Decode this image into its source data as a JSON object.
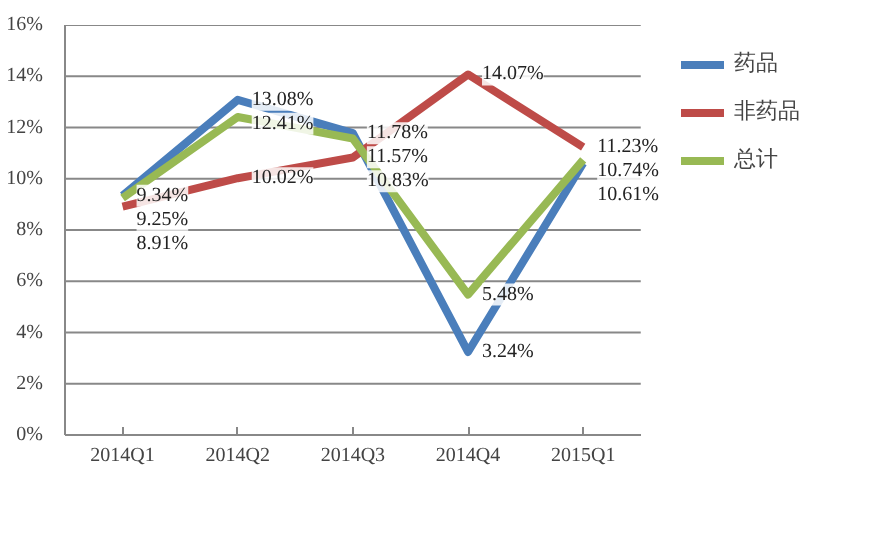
{
  "chart_data": {
    "type": "line",
    "categories": [
      "2014Q1",
      "2014Q2",
      "2014Q3",
      "2014Q4",
      "2015Q1"
    ],
    "series": [
      {
        "name": "药品",
        "color": "#4a7ebb",
        "values": [
          9.34,
          13.08,
          11.78,
          3.24,
          10.61
        ],
        "value_labels": [
          "9.34%",
          "13.08%",
          "11.78%",
          "3.24%",
          "10.61%"
        ]
      },
      {
        "name": "非药品",
        "color": "#be4b48",
        "values": [
          8.91,
          10.02,
          10.83,
          14.07,
          11.23
        ],
        "value_labels": [
          "8.91%",
          "10.02%",
          "10.83%",
          "14.07%",
          "11.23%"
        ]
      },
      {
        "name": "总计",
        "color": "#98b954",
        "values": [
          9.25,
          12.41,
          11.57,
          5.48,
          10.74
        ],
        "value_labels": [
          "9.25%",
          "12.41%",
          "11.57%",
          "5.48%",
          "10.74%"
        ]
      }
    ],
    "ylim": [
      0,
      16
    ],
    "yticks": [
      {
        "value": 0,
        "label": "0%"
      },
      {
        "value": 2,
        "label": "2%"
      },
      {
        "value": 4,
        "label": "4%"
      },
      {
        "value": 6,
        "label": "6%"
      },
      {
        "value": 8,
        "label": "8%"
      },
      {
        "value": 10,
        "label": "10%"
      },
      {
        "value": 12,
        "label": "12%"
      },
      {
        "value": 14,
        "label": "14%"
      },
      {
        "value": 16,
        "label": "16%"
      }
    ],
    "grid": "y",
    "legend": "right",
    "marker": "none",
    "line_style": "solid"
  }
}
